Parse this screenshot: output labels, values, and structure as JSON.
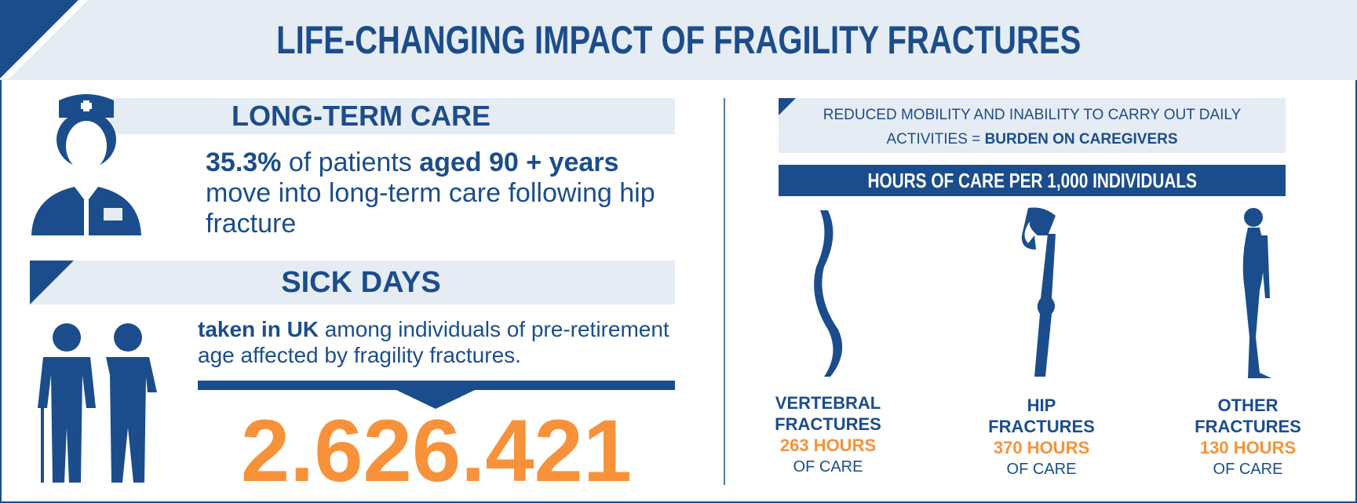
{
  "header": {
    "title": "LIFE-CHANGING IMPACT OF FRAGILITY FRACTURES"
  },
  "long_term_care": {
    "heading": "LONG-TERM CARE",
    "text": [
      {
        "text": "35.3%",
        "bold": true
      },
      {
        "text": " of patients ",
        "bold": false
      },
      {
        "text": "aged 90 + years",
        "bold": true
      },
      {
        "text": " move into long-term care following hip fracture",
        "bold": false
      }
    ]
  },
  "sick_days": {
    "heading": "SICK DAYS",
    "text": [
      {
        "text": "taken in UK",
        "bold": true
      },
      {
        "text": " among individuals of pre-retirement age affected by fragility fractures.",
        "bold": false
      }
    ],
    "figure": "2.626.421"
  },
  "caregivers": {
    "caption": [
      {
        "text": "REDUCED MOBILITY AND INABILITY TO CARRY OUT DAILY ACTIVITIES = ",
        "bold": false
      },
      {
        "text": "BURDEN ON CAREGIVERS",
        "bold": true
      }
    ],
    "heading": "HOURS OF CARE PER 1,000 INDIVIDUALS",
    "fractures": [
      {
        "name": "VERTEBRAL FRACTURES",
        "hours": "263 HOURS",
        "unit": "OF CARE"
      },
      {
        "name": "HIP FRACTURES",
        "hours": "370 HOURS",
        "unit": "OF CARE"
      },
      {
        "name": "OTHER FRACTURES",
        "hours": "130 HOURS",
        "unit": "OF CARE"
      }
    ]
  }
}
